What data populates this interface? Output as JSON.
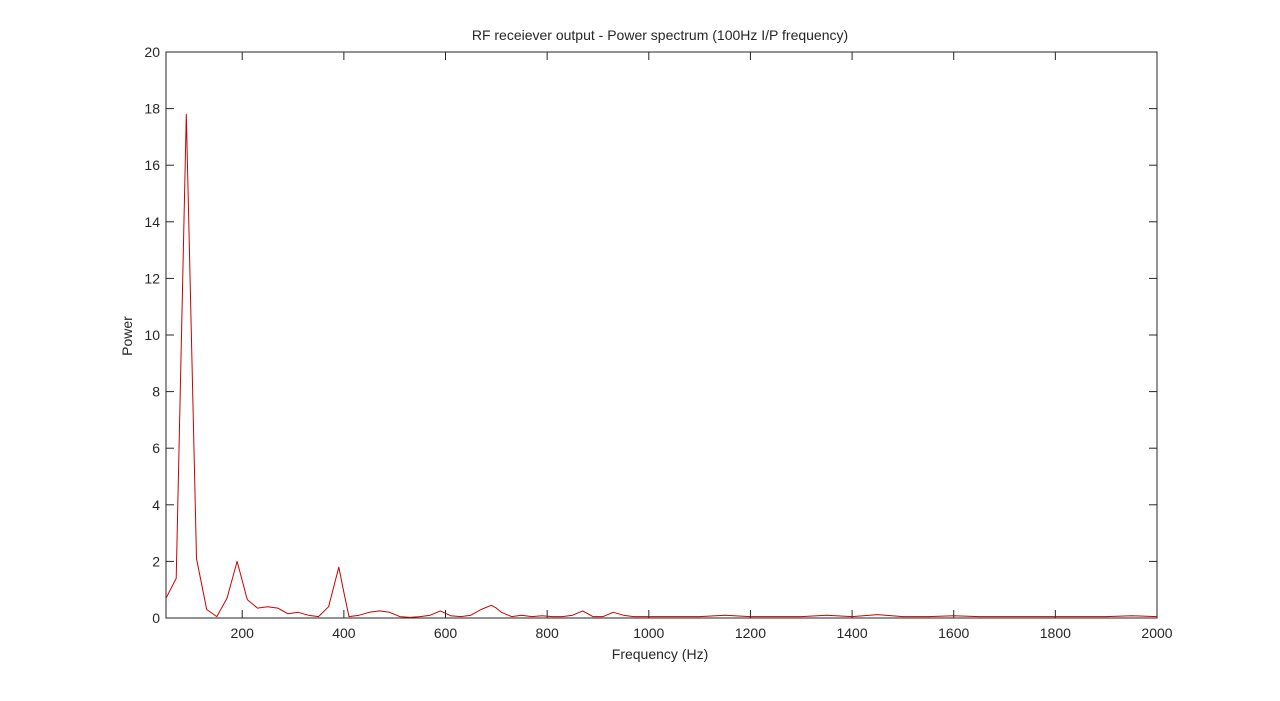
{
  "chart_data": {
    "type": "line",
    "title": "RF receiever output - Power spectrum (100Hz I/P frequency)",
    "xlabel": "Frequency (Hz)",
    "ylabel": "Power",
    "xlim": [
      50,
      2000
    ],
    "ylim": [
      0,
      20
    ],
    "xticks": [
      200,
      400,
      600,
      800,
      1000,
      1200,
      1400,
      1600,
      1800,
      2000
    ],
    "yticks": [
      0,
      2,
      4,
      6,
      8,
      10,
      12,
      14,
      16,
      18,
      20
    ],
    "grid": false,
    "legend": "none",
    "series": [
      {
        "color": "#cc0000",
        "x": [
          50,
          70,
          90,
          110,
          130,
          150,
          170,
          190,
          210,
          230,
          250,
          270,
          290,
          310,
          330,
          350,
          370,
          390,
          400,
          410,
          430,
          450,
          470,
          490,
          510,
          530,
          550,
          570,
          590,
          610,
          630,
          650,
          670,
          690,
          700,
          710,
          730,
          750,
          770,
          790,
          810,
          830,
          850,
          870,
          890,
          910,
          930,
          950,
          970,
          990,
          1010,
          1050,
          1100,
          1150,
          1200,
          1250,
          1300,
          1350,
          1400,
          1450,
          1500,
          1550,
          1600,
          1650,
          1700,
          1750,
          1800,
          1850,
          1900,
          1950,
          2000
        ],
        "y": [
          0.7,
          1.4,
          17.8,
          2.1,
          0.3,
          0.05,
          0.7,
          2.0,
          0.65,
          0.35,
          0.4,
          0.35,
          0.15,
          0.2,
          0.1,
          0.05,
          0.4,
          1.8,
          0.9,
          0.05,
          0.1,
          0.2,
          0.25,
          0.2,
          0.05,
          0.02,
          0.05,
          0.1,
          0.25,
          0.08,
          0.05,
          0.1,
          0.3,
          0.45,
          0.35,
          0.2,
          0.05,
          0.1,
          0.05,
          0.08,
          0.05,
          0.05,
          0.1,
          0.25,
          0.05,
          0.05,
          0.2,
          0.1,
          0.05,
          0.05,
          0.05,
          0.05,
          0.05,
          0.1,
          0.05,
          0.05,
          0.05,
          0.1,
          0.05,
          0.12,
          0.05,
          0.05,
          0.08,
          0.05,
          0.05,
          0.05,
          0.05,
          0.05,
          0.05,
          0.08,
          0.05
        ]
      }
    ]
  }
}
